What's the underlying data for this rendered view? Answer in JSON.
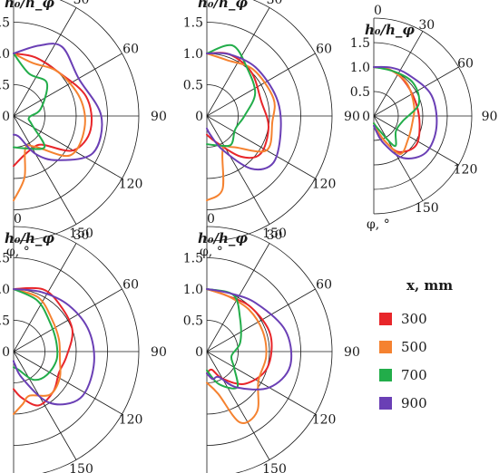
{
  "chart_data": {
    "type": "polar-line",
    "angle_ticks": [
      "0",
      "30",
      "60",
      "90",
      "120",
      "150"
    ],
    "radial_ticks": [
      "0",
      "0.5",
      "1.0",
      "1.5"
    ],
    "r_max": 1.5,
    "radial_values": [
      0,
      0.5,
      1.0,
      1.5
    ],
    "rings": [
      0.5,
      1.0,
      1.5,
      2.0
    ],
    "theta_range_deg": [
      0,
      180
    ],
    "ylabel": "h₀/h_φ",
    "xlabel": "φ, °",
    "legend": {
      "title": "x, mm",
      "position": "right",
      "entries": [
        {
          "label": "300",
          "color": "#e8262a"
        },
        {
          "label": "500",
          "color": "#f58230"
        },
        {
          "label": "700",
          "color": "#22ad4a"
        },
        {
          "label": "900",
          "color": "#6a3fb5"
        }
      ]
    },
    "panels": [
      {
        "series": [
          {
            "name": "300",
            "color": "#e8262a",
            "points": [
              [
                0,
                1.0
              ],
              [
                20,
                1.0
              ],
              [
                45,
                1.0
              ],
              [
                75,
                1.2
              ],
              [
                100,
                1.25
              ],
              [
                120,
                1.1
              ],
              [
                135,
                0.65
              ],
              [
                150,
                0.6
              ],
              [
                165,
                0.65
              ],
              [
                180,
                0.8
              ]
            ]
          },
          {
            "name": "500",
            "color": "#f58230",
            "points": [
              [
                0,
                1.0
              ],
              [
                20,
                0.9
              ],
              [
                45,
                1.0
              ],
              [
                75,
                1.1
              ],
              [
                100,
                1.15
              ],
              [
                125,
                1.1
              ],
              [
                145,
                0.6
              ],
              [
                160,
                0.55
              ],
              [
                170,
                1.0
              ],
              [
                180,
                1.35
              ]
            ]
          },
          {
            "name": "700",
            "color": "#22ad4a",
            "points": [
              [
                0,
                1.0
              ],
              [
                20,
                0.72
              ],
              [
                45,
                0.75
              ],
              [
                75,
                0.45
              ],
              [
                95,
                0.25
              ],
              [
                115,
                0.32
              ],
              [
                135,
                0.7
              ],
              [
                160,
                0.55
              ],
              [
                180,
                0.5
              ]
            ]
          },
          {
            "name": "900",
            "color": "#6a3fb5",
            "points": [
              [
                0,
                1.0
              ],
              [
                20,
                1.2
              ],
              [
                35,
                1.35
              ],
              [
                60,
                1.2
              ],
              [
                90,
                1.4
              ],
              [
                115,
                1.4
              ],
              [
                135,
                1.0
              ],
              [
                150,
                0.7
              ],
              [
                165,
                0.35
              ],
              [
                180,
                0.3
              ]
            ]
          }
        ]
      },
      {
        "series": [
          {
            "name": "300",
            "color": "#e8262a",
            "points": [
              [
                0,
                1.0
              ],
              [
                20,
                1.05
              ],
              [
                45,
                1.0
              ],
              [
                75,
                0.9
              ],
              [
                100,
                1.0
              ],
              [
                125,
                1.05
              ],
              [
                140,
                0.85
              ],
              [
                160,
                0.45
              ],
              [
                180,
                0.3
              ]
            ]
          },
          {
            "name": "500",
            "color": "#f58230",
            "points": [
              [
                0,
                1.0
              ],
              [
                20,
                0.95
              ],
              [
                45,
                1.05
              ],
              [
                75,
                1.1
              ],
              [
                95,
                1.05
              ],
              [
                120,
                1.1
              ],
              [
                140,
                0.65
              ],
              [
                155,
                0.6
              ],
              [
                168,
                1.2
              ],
              [
                180,
                1.35
              ]
            ]
          },
          {
            "name": "700",
            "color": "#22ad4a",
            "points": [
              [
                0,
                1.0
              ],
              [
                20,
                1.2
              ],
              [
                40,
                1.0
              ],
              [
                65,
                0.85
              ],
              [
                90,
                0.6
              ],
              [
                115,
                0.5
              ],
              [
                140,
                0.6
              ],
              [
                160,
                0.5
              ],
              [
                180,
                0.45
              ]
            ]
          },
          {
            "name": "900",
            "color": "#6a3fb5",
            "points": [
              [
                0,
                1.0
              ],
              [
                20,
                1.05
              ],
              [
                45,
                1.1
              ],
              [
                75,
                1.15
              ],
              [
                100,
                1.2
              ],
              [
                125,
                1.3
              ],
              [
                140,
                1.1
              ],
              [
                155,
                0.6
              ],
              [
                170,
                0.3
              ],
              [
                180,
                0.2
              ]
            ]
          }
        ]
      },
      {
        "series": [
          {
            "name": "300",
            "color": "#e8262a",
            "points": [
              [
                0,
                1.0
              ],
              [
                20,
                1.0
              ],
              [
                40,
                0.95
              ],
              [
                70,
                0.9
              ],
              [
                100,
                0.95
              ],
              [
                125,
                1.05
              ],
              [
                145,
                0.9
              ],
              [
                155,
                0.6
              ],
              [
                168,
                0.3
              ],
              [
                180,
                0.15
              ]
            ]
          },
          {
            "name": "500",
            "color": "#f58230",
            "points": [
              [
                0,
                1.0
              ],
              [
                20,
                1.0
              ],
              [
                45,
                0.95
              ],
              [
                75,
                0.85
              ],
              [
                100,
                0.8
              ],
              [
                125,
                0.85
              ],
              [
                145,
                0.95
              ],
              [
                155,
                0.6
              ],
              [
                168,
                0.3
              ],
              [
                180,
                0.15
              ]
            ]
          },
          {
            "name": "700",
            "color": "#22ad4a",
            "points": [
              [
                0,
                1.0
              ],
              [
                25,
                1.0
              ],
              [
                50,
                1.05
              ],
              [
                75,
                0.95
              ],
              [
                100,
                0.6
              ],
              [
                125,
                0.55
              ],
              [
                145,
                0.75
              ],
              [
                160,
                0.3
              ],
              [
                180,
                0.15
              ]
            ]
          },
          {
            "name": "900",
            "color": "#6a3fb5",
            "points": [
              [
                0,
                1.0
              ],
              [
                20,
                1.05
              ],
              [
                40,
                1.1
              ],
              [
                70,
                1.25
              ],
              [
                100,
                1.3
              ],
              [
                125,
                1.3
              ],
              [
                145,
                1.05
              ],
              [
                160,
                0.6
              ],
              [
                172,
                0.3
              ],
              [
                180,
                0.2
              ]
            ]
          }
        ]
      },
      {
        "series": [
          {
            "name": "300",
            "color": "#e8262a",
            "points": [
              [
                0,
                1.0
              ],
              [
                25,
                1.1
              ],
              [
                45,
                1.05
              ],
              [
                70,
                1.0
              ],
              [
                95,
                0.85
              ],
              [
                115,
                0.8
              ],
              [
                135,
                0.9
              ],
              [
                155,
                0.95
              ],
              [
                170,
                0.75
              ],
              [
                180,
                0.6
              ]
            ]
          },
          {
            "name": "500",
            "color": "#f58230",
            "points": [
              [
                0,
                1.0
              ],
              [
                25,
                0.95
              ],
              [
                50,
                0.8
              ],
              [
                75,
                0.75
              ],
              [
                100,
                0.75
              ],
              [
                120,
                0.85
              ],
              [
                140,
                0.9
              ],
              [
                160,
                0.75
              ],
              [
                170,
                0.85
              ],
              [
                180,
                1.0
              ]
            ]
          },
          {
            "name": "700",
            "color": "#22ad4a",
            "points": [
              [
                0,
                1.0
              ],
              [
                25,
                0.9
              ],
              [
                50,
                0.75
              ],
              [
                75,
                0.7
              ],
              [
                100,
                0.7
              ],
              [
                125,
                0.65
              ],
              [
                145,
                0.55
              ],
              [
                165,
                0.3
              ],
              [
                180,
                0.25
              ]
            ]
          },
          {
            "name": "900",
            "color": "#6a3fb5",
            "points": [
              [
                0,
                1.0
              ],
              [
                25,
                1.05
              ],
              [
                50,
                1.15
              ],
              [
                75,
                1.25
              ],
              [
                100,
                1.3
              ],
              [
                125,
                1.3
              ],
              [
                145,
                1.0
              ],
              [
                162,
                0.45
              ],
              [
                175,
                0.2
              ],
              [
                180,
                0.15
              ]
            ]
          }
        ]
      },
      {
        "series": [
          {
            "name": "300",
            "color": "#e8262a",
            "points": [
              [
                0,
                1.0
              ],
              [
                20,
                0.95
              ],
              [
                45,
                1.0
              ],
              [
                75,
                1.05
              ],
              [
                105,
                1.0
              ],
              [
                130,
                0.8
              ],
              [
                150,
                0.5
              ],
              [
                165,
                0.3
              ],
              [
                180,
                0.35
              ]
            ]
          },
          {
            "name": "500",
            "color": "#f58230",
            "points": [
              [
                0,
                1.0
              ],
              [
                20,
                0.95
              ],
              [
                45,
                0.95
              ],
              [
                70,
                0.95
              ],
              [
                95,
                0.95
              ],
              [
                120,
                0.95
              ],
              [
                140,
                1.25
              ],
              [
                155,
                1.25
              ],
              [
                165,
                0.7
              ],
              [
                180,
                0.5
              ]
            ]
          },
          {
            "name": "700",
            "color": "#22ad4a",
            "points": [
              [
                0,
                1.0
              ],
              [
                25,
                1.0
              ],
              [
                45,
                0.75
              ],
              [
                75,
                0.55
              ],
              [
                100,
                0.4
              ],
              [
                120,
                0.5
              ],
              [
                140,
                0.75
              ],
              [
                160,
                0.55
              ],
              [
                180,
                0.3
              ]
            ]
          },
          {
            "name": "900",
            "color": "#6a3fb5",
            "points": [
              [
                0,
                1.0
              ],
              [
                20,
                1.0
              ],
              [
                45,
                1.1
              ],
              [
                75,
                1.3
              ],
              [
                100,
                1.35
              ],
              [
                120,
                1.15
              ],
              [
                140,
                0.75
              ],
              [
                155,
                0.45
              ],
              [
                168,
                0.45
              ],
              [
                180,
                0.35
              ]
            ]
          }
        ]
      }
    ]
  }
}
